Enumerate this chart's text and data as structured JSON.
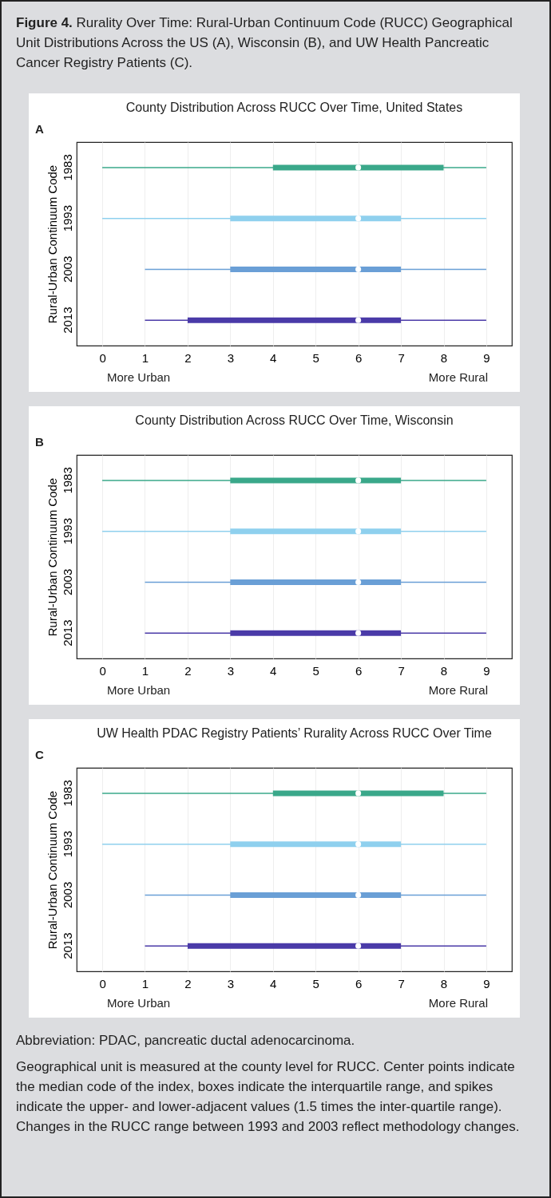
{
  "chart_data": [
    {
      "type": "other",
      "title": "Figure 4.",
      "subtitle": "Rurality Over Time: Rural-Urban Continuum Code (RUCC) Geographical Unit Distributions Across the US (A), Wisconsin (B), and UW Health Pancreatic Cancer Registry Patients (C)."
    },
    {
      "type": "box",
      "orientation": "horizontal",
      "title": "County Distribution Across RUCC Over Time, United States",
      "ylabel": "Rural-Urban Continuum Code",
      "annotations": [
        "A",
        "More Urban",
        "More Rural"
      ],
      "categories": [
        "1983",
        "1993",
        "2003",
        "2013"
      ],
      "colors": [
        "#3aa88a",
        "#8fd0ee",
        "#6a9fd6",
        "#4a3aa8"
      ],
      "boxes": [
        {
          "low": 0,
          "q1": 4,
          "median": 6,
          "q3": 8,
          "high": 9
        },
        {
          "low": 0,
          "q1": 3,
          "median": 6,
          "q3": 7,
          "high": 9
        },
        {
          "low": 1,
          "q1": 3,
          "median": 6,
          "q3": 7,
          "high": 9
        },
        {
          "low": 1,
          "q1": 2,
          "median": 6,
          "q3": 7,
          "high": 9
        }
      ],
      "xlim": [
        -0.6,
        9.6
      ],
      "xticks": [
        0,
        1,
        2,
        3,
        4,
        5,
        6,
        7,
        8,
        9
      ],
      "grid": "x"
    },
    {
      "type": "box",
      "orientation": "horizontal",
      "title": "County Distribution Across RUCC Over Time, Wisconsin",
      "ylabel": "Rural-Urban Continuum Code",
      "annotations": [
        "B",
        "More Urban",
        "More Rural"
      ],
      "categories": [
        "1983",
        "1993",
        "2003",
        "2013"
      ],
      "colors": [
        "#3aa88a",
        "#8fd0ee",
        "#6a9fd6",
        "#4a3aa8"
      ],
      "boxes": [
        {
          "low": 0,
          "q1": 3,
          "median": 6,
          "q3": 7,
          "high": 9
        },
        {
          "low": 0,
          "q1": 3,
          "median": 6,
          "q3": 7,
          "high": 9
        },
        {
          "low": 1,
          "q1": 3,
          "median": 6,
          "q3": 7,
          "high": 9
        },
        {
          "low": 1,
          "q1": 3,
          "median": 6,
          "q3": 7,
          "high": 9
        }
      ],
      "xlim": [
        -0.6,
        9.6
      ],
      "xticks": [
        0,
        1,
        2,
        3,
        4,
        5,
        6,
        7,
        8,
        9
      ],
      "grid": "x"
    },
    {
      "type": "box",
      "orientation": "horizontal",
      "title": "UW Health PDAC Registry Patients’ Rurality Across RUCC Over Time",
      "ylabel": "Rural-Urban Continuum Code",
      "annotations": [
        "C",
        "More Urban",
        "More Rural"
      ],
      "categories": [
        "1983",
        "1993",
        "2003",
        "2013"
      ],
      "colors": [
        "#3aa88a",
        "#8fd0ee",
        "#6a9fd6",
        "#4a3aa8"
      ],
      "boxes": [
        {
          "low": 0,
          "q1": 4,
          "median": 6,
          "q3": 8,
          "high": 9
        },
        {
          "low": 0,
          "q1": 3,
          "median": 6,
          "q3": 7,
          "high": 9
        },
        {
          "low": 1,
          "q1": 3,
          "median": 6,
          "q3": 7,
          "high": 9
        },
        {
          "low": 1,
          "q1": 2,
          "median": 6,
          "q3": 7,
          "high": 9
        }
      ],
      "xlim": [
        -0.6,
        9.6
      ],
      "xticks": [
        0,
        1,
        2,
        3,
        4,
        5,
        6,
        7,
        8,
        9
      ],
      "grid": "x"
    },
    {
      "type": "other",
      "annotations": [
        "Abbreviation: PDAC, pancreatic ductal adenocarcinoma.",
        "Geographical unit is measured at the county level for RUCC. Center points indicate the median code of the index, boxes indicate the interquartile range, and spikes indicate the upper- and lower-adjacent values (1.5 times the inter-quartile range). Changes in the RUCC range between 1993 and 2003 reflect methodology changes."
      ]
    }
  ]
}
